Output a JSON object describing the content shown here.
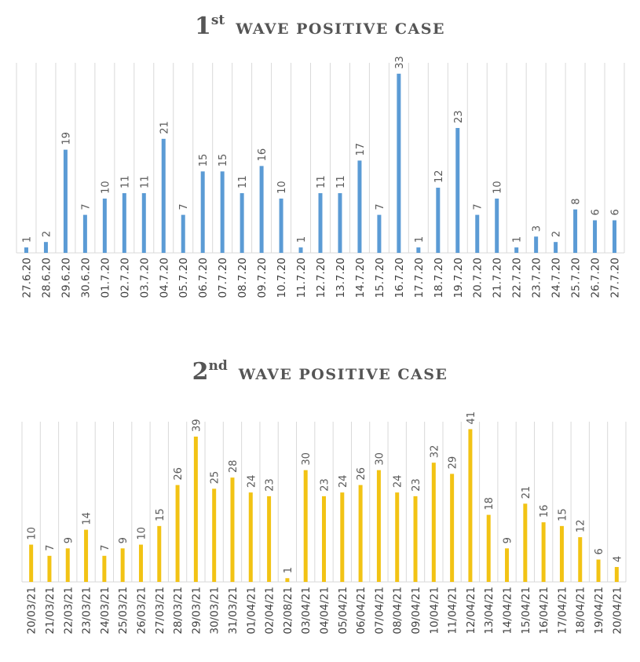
{
  "chart_data": [
    {
      "type": "bar",
      "title": "1st WAVE POSITIVE CASE",
      "title_parts": {
        "number": "1",
        "suffix": "st",
        "text": "WAVE POSITIVE CASE"
      },
      "categories": [
        "27.6.20",
        "28.6.20",
        "29.6.20",
        "30.6.20",
        "01.7.20",
        "02.7.20",
        "03.7.20",
        "04.7.20",
        "05.7.20",
        "06.7.20",
        "07.7.20",
        "08.7.20",
        "09.7.20",
        "10.7.20",
        "11.7.20",
        "12.7.20",
        "13.7.20",
        "14.7.20",
        "15.7.20",
        "16.7.20",
        "17.7.20",
        "18.7.20",
        "19.7.20",
        "20.7.20",
        "21.7.20",
        "22.7.20",
        "23.7.20",
        "24.7.20",
        "25.7.20",
        "26.7.20",
        "27.7.20"
      ],
      "values": [
        1,
        2,
        19,
        7,
        10,
        11,
        11,
        21,
        7,
        15,
        15,
        11,
        16,
        10,
        1,
        11,
        11,
        17,
        7,
        33,
        1,
        12,
        23,
        7,
        10,
        1,
        3,
        2,
        8,
        6,
        6
      ],
      "xlabel": "",
      "ylabel": "",
      "ylim": [
        0,
        35
      ],
      "grid": "vertical",
      "data_labels": true,
      "color": "#5b9bd5"
    },
    {
      "type": "bar",
      "title": "2nd WAVE POSITIVE CASE",
      "title_parts": {
        "number": "2",
        "suffix": "nd",
        "text": "WAVE POSITIVE CASE"
      },
      "categories": [
        "20/03/21",
        "21/03/21",
        "22/03/21",
        "23/03/21",
        "24/03/21",
        "25/03/21",
        "26/03/21",
        "27/03/21",
        "28/03/21",
        "29/03/21",
        "30/03/21",
        "31/03/21",
        "01/04/21",
        "02/04/21",
        "02/08/21",
        "03/04/21",
        "04/04/21",
        "05/04/21",
        "06/04/21",
        "07/04/21",
        "08/04/21",
        "09/04/21",
        "10/04/21",
        "11/04/21",
        "12/04/21",
        "13/04/21",
        "14/04/21",
        "15/04/21",
        "16/04/21",
        "17/04/21",
        "18/04/21",
        "19/04/21",
        "20/04/21"
      ],
      "values": [
        10,
        7,
        9,
        14,
        7,
        9,
        10,
        15,
        26,
        39,
        25,
        28,
        24,
        23,
        1,
        30,
        23,
        24,
        26,
        30,
        24,
        23,
        32,
        29,
        41,
        18,
        9,
        21,
        16,
        15,
        12,
        6,
        4
      ],
      "xlabel": "",
      "ylabel": "",
      "ylim": [
        0,
        43
      ],
      "grid": "vertical",
      "data_labels": true,
      "color": "#f2c314"
    }
  ]
}
